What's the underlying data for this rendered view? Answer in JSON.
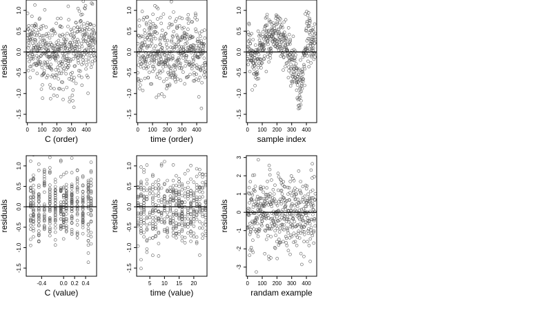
{
  "colors": {
    "points": "#5a5a5a",
    "axis": "#000000",
    "background": "#ffffff"
  },
  "chart_data": [
    {
      "type": "scatter",
      "title": "",
      "xlabel": "C (order)",
      "ylabel": "residuals",
      "xlim": [
        -8,
        470
      ],
      "ylim": [
        -1.7,
        1.25
      ],
      "xticks": [
        0,
        100,
        200,
        300,
        400
      ],
      "xtick_labels": [
        "0",
        "100",
        "200",
        "300",
        "400"
      ],
      "yticks": [
        -1.5,
        -1.0,
        -0.5,
        0.0,
        0.5,
        1.0
      ],
      "ytick_labels": [
        "-1.5",
        "-1.0",
        "-0.5",
        "0.0",
        "0.5",
        "1.0"
      ],
      "hline": 0,
      "n_points": 460,
      "x_range": [
        0,
        460
      ],
      "spread": 0.42,
      "trend": [
        [
          0,
          0.15
        ],
        [
          100,
          0.05
        ],
        [
          200,
          -0.05
        ],
        [
          300,
          -0.05
        ],
        [
          400,
          0.2
        ],
        [
          460,
          0.25
        ]
      ]
    },
    {
      "type": "scatter",
      "title": "",
      "xlabel": "time (order)",
      "ylabel": "residuals",
      "xlim": [
        -8,
        470
      ],
      "ylim": [
        -1.7,
        1.25
      ],
      "xticks": [
        0,
        100,
        200,
        300,
        400
      ],
      "xtick_labels": [
        "0",
        "100",
        "200",
        "300",
        "400"
      ],
      "yticks": [
        -1.5,
        -1.0,
        -0.5,
        0.0,
        0.5,
        1.0
      ],
      "ytick_labels": [
        "-1.5",
        "-1.0",
        "-0.5",
        "0.0",
        "0.5",
        "1.0"
      ],
      "hline": 0,
      "n_points": 460,
      "x_range": [
        0,
        460
      ],
      "spread": 0.42,
      "trend": [
        [
          0,
          -0.1
        ],
        [
          100,
          0.25
        ],
        [
          200,
          -0.2
        ],
        [
          300,
          0.1
        ],
        [
          400,
          0.05
        ],
        [
          460,
          -0.2
        ]
      ]
    },
    {
      "type": "scatter",
      "title": "",
      "xlabel": "sample index",
      "ylabel": "residuals",
      "xlim": [
        -8,
        470
      ],
      "ylim": [
        -1.7,
        1.25
      ],
      "xticks": [
        0,
        100,
        200,
        300,
        400
      ],
      "xtick_labels": [
        "0",
        "100",
        "200",
        "300",
        "400"
      ],
      "yticks": [
        -1.5,
        -1.0,
        -0.5,
        0.0,
        0.5,
        1.0
      ],
      "ytick_labels": [
        "-1.5",
        "-1.0",
        "-0.5",
        "0.0",
        "0.5",
        "1.0"
      ],
      "hline": 0,
      "n_points": 460,
      "x_range": [
        0,
        460
      ],
      "spread": 0.3,
      "trend": [
        [
          0,
          0.0
        ],
        [
          60,
          -0.2
        ],
        [
          120,
          0.3
        ],
        [
          200,
          0.5
        ],
        [
          260,
          0.1
        ],
        [
          330,
          -0.5
        ],
        [
          360,
          -1.0
        ],
        [
          400,
          0.3
        ],
        [
          460,
          0.35
        ]
      ]
    },
    {
      "type": "scatter",
      "title": "",
      "xlabel": "C (value)",
      "ylabel": "residuals",
      "xlim": [
        -0.68,
        0.6
      ],
      "ylim": [
        -1.7,
        1.25
      ],
      "xticks": [
        -0.4,
        0.0,
        0.2,
        0.4
      ],
      "xtick_labels": [
        "-0.4",
        "0.0",
        "0.2",
        "0.4"
      ],
      "yticks": [
        -1.5,
        -1.0,
        -0.5,
        0.0,
        0.5,
        1.0
      ],
      "ytick_labels": [
        "-1.5",
        "-1.0",
        "-0.5",
        "0.0",
        "0.5",
        "1.0"
      ],
      "hline": 0,
      "n_points": 460,
      "discrete_x": [
        -0.6,
        -0.55,
        -0.45,
        -0.35,
        -0.25,
        -0.15,
        -0.05,
        0.0,
        0.05,
        0.15,
        0.25,
        0.35,
        0.45,
        0.5
      ],
      "spread": 0.45
    },
    {
      "type": "scatter",
      "title": "",
      "xlabel": "time (value)",
      "ylabel": "residuals",
      "xlim": [
        0.5,
        24.5
      ],
      "ylim": [
        -1.7,
        1.25
      ],
      "xticks": [
        5,
        10,
        15,
        20
      ],
      "xtick_labels": [
        "5",
        "10",
        "15",
        "20"
      ],
      "yticks": [
        -1.5,
        -1.0,
        -0.5,
        0.0,
        0.5,
        1.0
      ],
      "ytick_labels": [
        "-1.5",
        "-1.0",
        "-0.5",
        "0.0",
        "0.5",
        "1.0"
      ],
      "hline": 0,
      "n_points": 460,
      "discrete_x": [
        1,
        2,
        3,
        4,
        5,
        6,
        7,
        8,
        9,
        10,
        11,
        12,
        13,
        14,
        15,
        16,
        17,
        18,
        19,
        20,
        21,
        22,
        23,
        24
      ],
      "spread": 0.45
    },
    {
      "type": "scatter",
      "title": "",
      "xlabel": "randam example",
      "ylabel": "residuals",
      "xlim": [
        -8,
        470
      ],
      "ylim": [
        -3.5,
        3.1
      ],
      "xticks": [
        0,
        100,
        200,
        300,
        400
      ],
      "xtick_labels": [
        "0",
        "100",
        "200",
        "300",
        "400"
      ],
      "yticks": [
        -3,
        -2,
        -1,
        0,
        1,
        2,
        3
      ],
      "ytick_labels": [
        "-3",
        "-2",
        "-1",
        "0",
        "1",
        "2",
        "3"
      ],
      "hline": 0,
      "n_points": 460,
      "x_range": [
        0,
        460
      ],
      "spread": 1.0,
      "trend": [
        [
          0,
          0.0
        ],
        [
          460,
          0.0
        ]
      ]
    }
  ]
}
